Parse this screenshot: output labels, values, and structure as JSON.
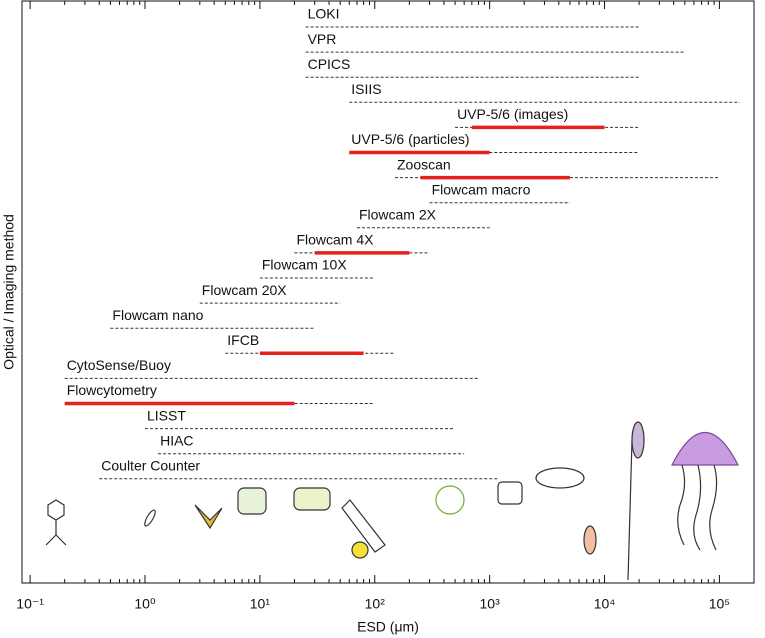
{
  "chart_data": {
    "type": "range",
    "x_label": "ESD (μm)",
    "y_label": "Optical / Imaging method",
    "x_log_scale": true,
    "xlim": [
      0.085,
      200000
    ],
    "xticks": [
      {
        "value": 0.1,
        "label": "10⁻¹"
      },
      {
        "value": 1,
        "label": "10⁰"
      },
      {
        "value": 10,
        "label": "10¹"
      },
      {
        "value": 100,
        "label": "10²"
      },
      {
        "value": 1000,
        "label": "10³"
      },
      {
        "value": 10000,
        "label": "10⁴"
      },
      {
        "value": 100000,
        "label": "10⁵"
      }
    ],
    "range_color": "#333333",
    "core_color": "#e8201c",
    "series": [
      {
        "name": "LOKI",
        "range": [
          25,
          20000
        ]
      },
      {
        "name": "VPR",
        "range": [
          25,
          50000
        ]
      },
      {
        "name": "CPICS",
        "range": [
          25,
          20000
        ]
      },
      {
        "name": "ISIIS",
        "range": [
          60,
          150000
        ]
      },
      {
        "name": "UVP-5/6 (images)",
        "range": [
          500,
          20000
        ],
        "core": [
          700,
          10000
        ]
      },
      {
        "name": "UVP-5/6 (particles)",
        "range": [
          60,
          20000
        ],
        "core": [
          60,
          1000
        ]
      },
      {
        "name": "Zooscan",
        "range": [
          150,
          100000
        ],
        "core": [
          250,
          5000
        ]
      },
      {
        "name": "Flowcam macro",
        "range": [
          300,
          5000
        ]
      },
      {
        "name": "Flowcam 2X",
        "range": [
          70,
          1000
        ]
      },
      {
        "name": "Flowcam 4X",
        "range": [
          20,
          300
        ],
        "core": [
          30,
          200
        ]
      },
      {
        "name": "Flowcam 10X",
        "range": [
          10,
          100
        ]
      },
      {
        "name": "Flowcam 20X",
        "range": [
          3,
          50
        ]
      },
      {
        "name": "Flowcam nano",
        "range": [
          0.5,
          30
        ]
      },
      {
        "name": "IFCB",
        "range": [
          5,
          150
        ],
        "core": [
          10,
          80
        ]
      },
      {
        "name": "CytoSense/Buoy",
        "range": [
          0.2,
          800
        ]
      },
      {
        "name": "Flowcytometry",
        "range": [
          0.2,
          100
        ],
        "core": [
          0.2,
          20
        ]
      },
      {
        "name": "LISST",
        "range": [
          1,
          500
        ]
      },
      {
        "name": "HIAC",
        "range": [
          1.3,
          600
        ]
      },
      {
        "name": "Coulter Counter",
        "range": [
          0.4,
          1200
        ]
      }
    ]
  }
}
